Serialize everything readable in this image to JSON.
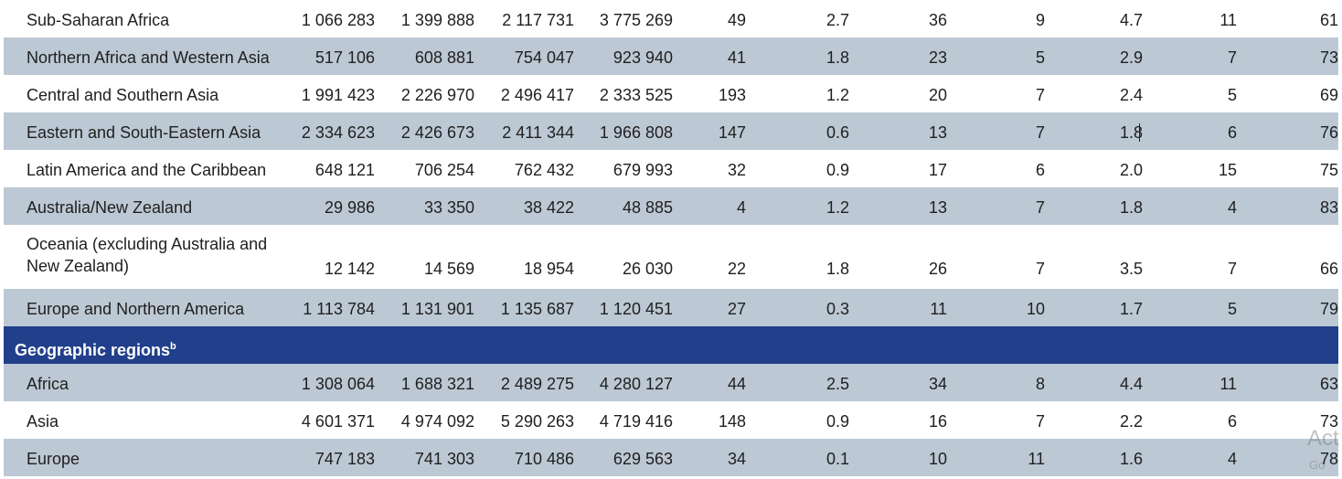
{
  "rows_top": [
    {
      "name": "Sub-Saharan Africa",
      "values": [
        "1 066 283",
        "1 399 888",
        "2 117 731",
        "3 775 269",
        "49",
        "2.7",
        "36",
        "9",
        "4.7",
        "11",
        "61"
      ]
    },
    {
      "name": "Northern Africa and Western Asia",
      "values": [
        "517 106",
        "608 881",
        "754 047",
        "923 940",
        "41",
        "1.8",
        "23",
        "5",
        "2.9",
        "7",
        "73"
      ]
    },
    {
      "name": "Central and Southern Asia",
      "values": [
        "1 991 423",
        "2 226 970",
        "2 496 417",
        "2 333 525",
        "193",
        "1.2",
        "20",
        "7",
        "2.4",
        "5",
        "69"
      ]
    },
    {
      "name": "Eastern and South-Eastern Asia",
      "values": [
        "2 334 623",
        "2 426 673",
        "2 411 344",
        "1 966 808",
        "147",
        "0.6",
        "13",
        "7",
        "1.8",
        "6",
        "76"
      ]
    },
    {
      "name": "Latin America and the Caribbean",
      "values": [
        "648 121",
        "706 254",
        "762 432",
        "679 993",
        "32",
        "0.9",
        "17",
        "6",
        "2.0",
        "15",
        "75"
      ]
    },
    {
      "name": "Australia/New Zealand",
      "values": [
        "29 986",
        "33 350",
        "38 422",
        "48 885",
        "4",
        "1.2",
        "13",
        "7",
        "1.8",
        "4",
        "83"
      ]
    },
    {
      "name_line1": "Oceania (excluding Australia and",
      "name_line2": "New Zealand)",
      "values": [
        "12 142",
        "14 569",
        "18 954",
        "26 030",
        "22",
        "1.8",
        "26",
        "7",
        "3.5",
        "7",
        "66"
      ]
    },
    {
      "name": "Europe and Northern America",
      "values": [
        "1 113 784",
        "1 131 901",
        "1 135 687",
        "1 120 451",
        "27",
        "0.3",
        "11",
        "10",
        "1.7",
        "5",
        "79"
      ]
    }
  ],
  "section": {
    "label": "Geographic regions",
    "superscript": "b"
  },
  "rows_bottom": [
    {
      "name": "Africa",
      "values": [
        "1 308 064",
        "1 688 321",
        "2 489 275",
        "4 280 127",
        "44",
        "2.5",
        "34",
        "8",
        "4.4",
        "11",
        "63"
      ]
    },
    {
      "name": "Asia",
      "values": [
        "4 601 371",
        "4 974 092",
        "5 290 263",
        "4 719 416",
        "148",
        "0.9",
        "16",
        "7",
        "2.2",
        "6",
        "73"
      ]
    },
    {
      "name": "Europe",
      "values": [
        "747 183",
        "741 303",
        "710 486",
        "629 563",
        "34",
        "0.1",
        "10",
        "11",
        "1.6",
        "4",
        "78"
      ]
    }
  ],
  "watermark": {
    "line1": "Act",
    "line2": "Go"
  }
}
